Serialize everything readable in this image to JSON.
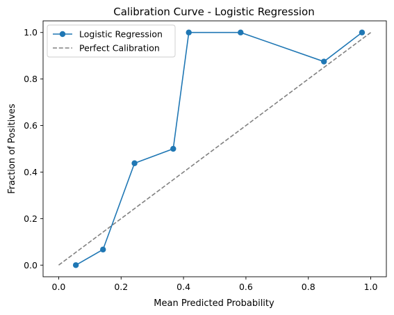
{
  "chart_data": {
    "type": "line",
    "title": "Calibration Curve - Logistic Regression",
    "xlabel": "Mean Predicted Probability",
    "ylabel": "Fraction of Positives",
    "xlim": [
      -0.05,
      1.05
    ],
    "ylim": [
      -0.05,
      1.05
    ],
    "xticks": [
      0.0,
      0.2,
      0.4,
      0.6,
      0.8,
      1.0
    ],
    "xtick_labels": [
      "0.0",
      "0.2",
      "0.4",
      "0.6",
      "0.8",
      "1.0"
    ],
    "yticks": [
      0.0,
      0.2,
      0.4,
      0.6,
      0.8,
      1.0
    ],
    "ytick_labels": [
      "0.0",
      "0.2",
      "0.4",
      "0.6",
      "0.8",
      "1.0"
    ],
    "grid": false,
    "legend_position": "upper left",
    "series": [
      {
        "name": "Logistic Regression",
        "color": "#1f77b4",
        "style": "solid",
        "marker": "circle",
        "x": [
          0.055,
          0.142,
          0.243,
          0.367,
          0.417,
          0.583,
          0.85,
          0.972
        ],
        "y": [
          0.0,
          0.067,
          0.438,
          0.5,
          1.0,
          1.0,
          0.875,
          1.0
        ]
      },
      {
        "name": "Perfect Calibration",
        "color": "#808080",
        "style": "dashed",
        "marker": "none",
        "x": [
          0.0,
          1.0
        ],
        "y": [
          0.0,
          1.0
        ]
      }
    ]
  }
}
